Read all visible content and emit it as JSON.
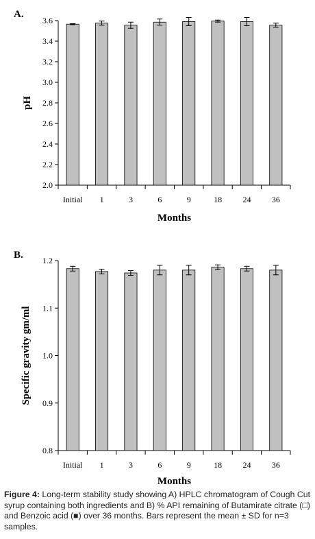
{
  "chart_data": [
    {
      "type": "bar",
      "panel_label": "A.",
      "categories": [
        "Initial",
        "1",
        "3",
        "6",
        "9",
        "18",
        "24",
        "36"
      ],
      "values": [
        3.565,
        3.575,
        3.555,
        3.585,
        3.59,
        3.595,
        3.59,
        3.555
      ],
      "errors": [
        0.005,
        0.02,
        0.03,
        0.03,
        0.04,
        0.01,
        0.04,
        0.02
      ],
      "xlabel": "Months",
      "ylabel": "pH",
      "ylim": [
        2.0,
        3.6
      ],
      "yticks": [
        "2.0",
        "2.2",
        "2.4",
        "2.6",
        "2.8",
        "3.0",
        "3.2",
        "3.4",
        "3.6"
      ],
      "grid": false,
      "bar_color": "#c0c0c0"
    },
    {
      "type": "bar",
      "panel_label": "B.",
      "categories": [
        "Initial",
        "1",
        "3",
        "6",
        "9",
        "18",
        "24",
        "36"
      ],
      "values": [
        1.183,
        1.177,
        1.174,
        1.18,
        1.18,
        1.186,
        1.183,
        1.18
      ],
      "errors": [
        0.005,
        0.005,
        0.005,
        0.01,
        0.01,
        0.005,
        0.005,
        0.01
      ],
      "xlabel": "Months",
      "ylabel": "Specific gravity gm/ml",
      "ylim": [
        0.8,
        1.2
      ],
      "yticks": [
        "0.8",
        "0.9",
        "1.0",
        "1.1",
        "1.2"
      ],
      "grid": false,
      "bar_color": "#c0c0c0"
    }
  ],
  "caption": {
    "label": "Figure 4:",
    "text": "Long-term stability study showing A) HPLC chromatogram of Cough Cut syrup containing both ingredients and B) % API remaining of Butamirate citrate (□) and Benzoic acid (■) over 36 months. Bars represent the mean ± SD for n=3 samples."
  }
}
